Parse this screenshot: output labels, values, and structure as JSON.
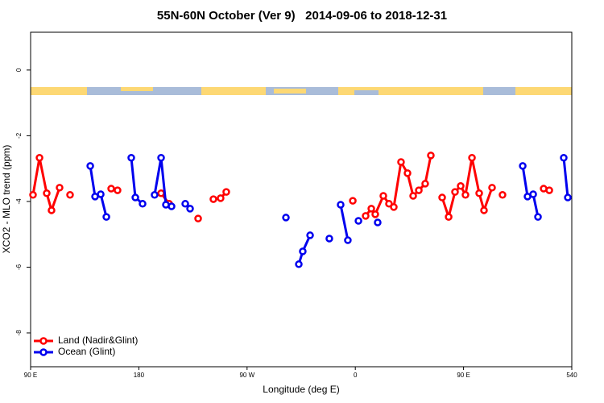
{
  "chart_data": {
    "type": "line",
    "title": "55N-60N October (Ver 9)   2014-09-06 to 2018-12-31",
    "x_label": "Longitude (deg E)",
    "y_label": "XCO2 - MLO trend (ppm)",
    "xlim": [
      90,
      540
    ],
    "xticks": [
      {
        "value": 90,
        "label": "90 E"
      },
      180,
      {
        "value": 270,
        "label": "90 W"
      },
      {
        "value": 360,
        "label": "0"
      },
      {
        "value": 450,
        "label": "90 E"
      },
      540
    ],
    "ylim": [
      -9.03,
      1.15
    ],
    "yticks": [
      0,
      -2,
      -4,
      -6,
      -8
    ],
    "legend": "bottom-left",
    "series": [
      {
        "name": "Land (Nadir&Glint)",
        "color": "#ff0000",
        "x": [
          92.0,
          97.4,
          103.4,
          107.4,
          114.1,
          null,
          122.8,
          null,
          157.0,
          162.3,
          null,
          198.5,
          205.2,
          null,
          229.3,
          null,
          242.0,
          248.0,
          252.7,
          null,
          357.9,
          null,
          368.6,
          373.3,
          376.6,
          383.3,
          388.0,
          392.0,
          398.0,
          403.4,
          408.1,
          412.8,
          418.1,
          422.8,
          null,
          432.2,
          437.6,
          442.9,
          447.6,
          451.6,
          457.0,
          463.0,
          467.0,
          473.7,
          null,
          482.4,
          null,
          516.6,
          521.3
        ],
        "values": [
          -3.8,
          -2.67,
          -3.75,
          -4.27,
          -3.58,
          null,
          -3.8,
          null,
          -3.61,
          -3.66,
          null,
          -3.75,
          -4.07,
          null,
          -4.52,
          null,
          -3.93,
          -3.9,
          -3.71,
          null,
          -3.98,
          null,
          -4.44,
          -4.22,
          -4.39,
          -3.83,
          -4.07,
          -4.17,
          -2.8,
          -3.14,
          -3.83,
          -3.66,
          -3.46,
          -2.6,
          null,
          -3.88,
          -4.47,
          -3.71,
          -3.53,
          -3.8,
          -2.67,
          -3.75,
          -4.27,
          -3.58,
          null,
          -3.8,
          null,
          -3.61,
          -3.66
        ]
      },
      {
        "name": "Ocean (Glint)",
        "color": "#0000ee",
        "x": [
          139.6,
          143.6,
          148.3,
          153.0,
          null,
          173.7,
          177.1,
          183.1,
          null,
          193.1,
          198.5,
          202.5,
          207.2,
          null,
          218.6,
          222.6,
          null,
          302.3,
          null,
          313.0,
          316.3,
          322.4,
          null,
          338.4,
          null,
          347.8,
          353.8,
          null,
          362.6,
          null,
          378.6,
          null,
          499.2,
          503.2,
          507.9,
          511.9,
          null,
          533.3,
          536.7
        ],
        "values": [
          -2.92,
          -3.85,
          -3.78,
          -4.47,
          null,
          -2.67,
          -3.88,
          -4.07,
          null,
          -3.8,
          -2.67,
          -4.1,
          -4.15,
          null,
          -4.07,
          -4.22,
          null,
          -4.49,
          null,
          -5.91,
          -5.52,
          -5.03,
          null,
          -5.13,
          null,
          -4.1,
          -5.18,
          null,
          -4.59,
          null,
          -4.64,
          null,
          -2.92,
          -3.85,
          -3.78,
          -4.47,
          null,
          -2.67,
          -3.88
        ]
      }
    ]
  }
}
